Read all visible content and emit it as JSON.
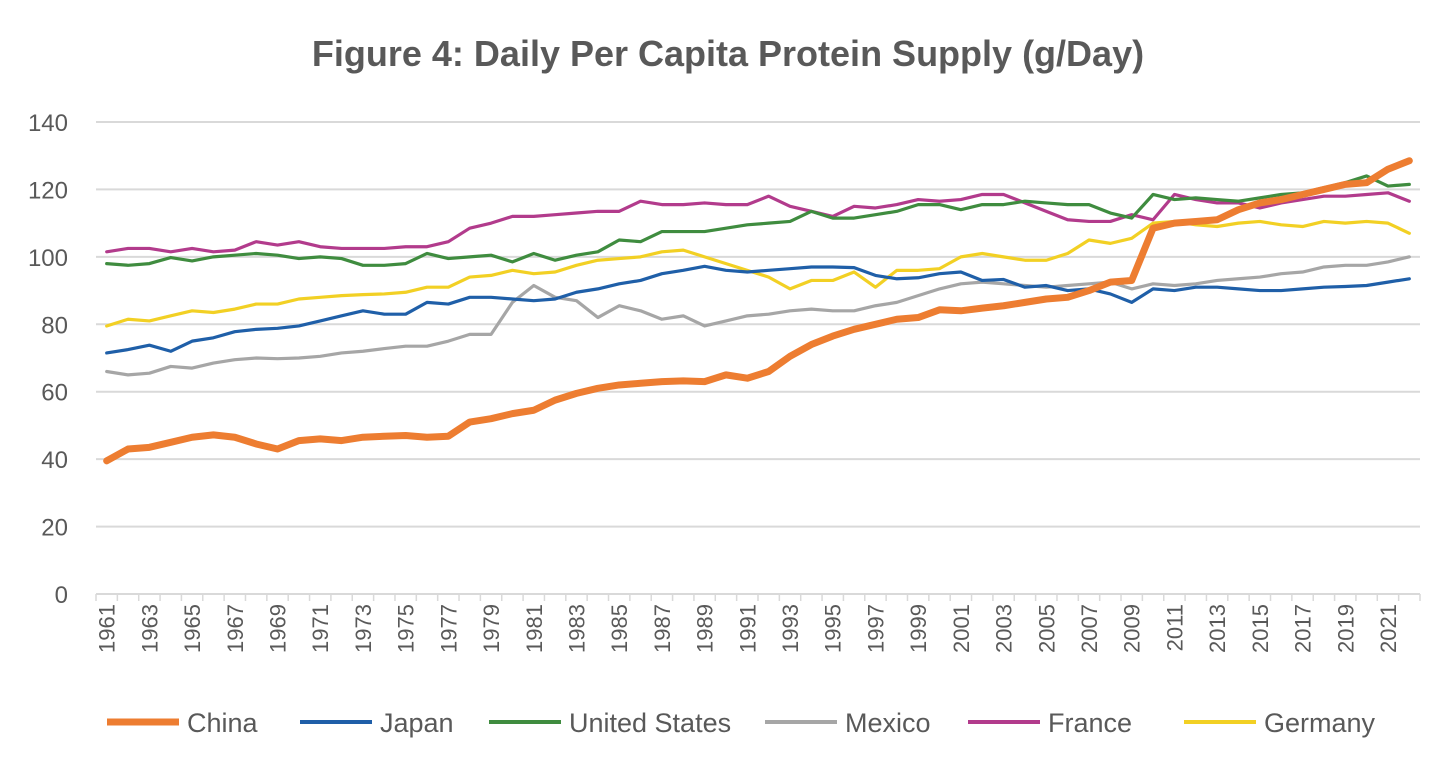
{
  "chart_data": {
    "type": "line",
    "title": "Figure 4: Daily Per Capita Protein Supply (g/Day)",
    "xlabel": "",
    "ylabel": "",
    "ylim": [
      0,
      140
    ],
    "yticks": [
      0,
      20,
      40,
      60,
      80,
      100,
      120,
      140
    ],
    "grid": true,
    "legend_position": "bottom",
    "x": [
      1961,
      1962,
      1963,
      1964,
      1965,
      1966,
      1967,
      1968,
      1969,
      1970,
      1971,
      1972,
      1973,
      1974,
      1975,
      1976,
      1977,
      1978,
      1979,
      1980,
      1981,
      1982,
      1983,
      1984,
      1985,
      1986,
      1987,
      1988,
      1989,
      1990,
      1991,
      1992,
      1993,
      1994,
      1995,
      1996,
      1997,
      1998,
      1999,
      2000,
      2001,
      2002,
      2003,
      2004,
      2005,
      2006,
      2007,
      2008,
      2009,
      2010,
      2011,
      2012,
      2013,
      2014,
      2015,
      2016,
      2017,
      2018,
      2019,
      2020,
      2021,
      2022
    ],
    "xtick_labels": [
      "1961",
      "1963",
      "1965",
      "1967",
      "1969",
      "1971",
      "1973",
      "1975",
      "1977",
      "1979",
      "1981",
      "1983",
      "1985",
      "1987",
      "1989",
      "1991",
      "1993",
      "1995",
      "1997",
      "1999",
      "2001",
      "2003",
      "2005",
      "2007",
      "2009",
      "2011",
      "2013",
      "2015",
      "2017",
      "2019",
      "2021"
    ],
    "series": [
      {
        "name": "China",
        "color": "#ED7D31",
        "values": [
          39.5,
          43,
          43.5,
          45,
          46.5,
          47.2,
          46.5,
          44.5,
          43,
          45.5,
          46,
          45.5,
          46.5,
          46.8,
          47,
          46.5,
          46.8,
          51,
          52,
          53.5,
          54.5,
          57.5,
          59.5,
          61,
          62,
          62.5,
          63,
          63.2,
          63,
          65,
          64,
          66,
          70.5,
          74,
          76.5,
          78.5,
          80,
          81.5,
          82,
          84.3,
          84,
          84.8,
          85.5,
          86.5,
          87.5,
          88,
          90,
          92.5,
          93,
          108.5,
          110,
          110.5,
          111,
          114,
          116,
          117,
          118.5,
          120,
          121.5,
          122,
          126,
          128.5
        ]
      },
      {
        "name": "Japan",
        "color": "#1F5FA8",
        "values": [
          71.5,
          72.5,
          73.8,
          72,
          75,
          76,
          77.8,
          78.5,
          78.8,
          79.5,
          81,
          82.5,
          84,
          83,
          83,
          86.5,
          86,
          88,
          88,
          87.5,
          87,
          87.5,
          89.5,
          90.5,
          92,
          93,
          95,
          96,
          97.2,
          96,
          95.5,
          96,
          96.5,
          97,
          97,
          96.8,
          94.5,
          93.5,
          93.8,
          95,
          95.5,
          93,
          93.3,
          91,
          91.5,
          90,
          90.5,
          89,
          86.5,
          90.5,
          90,
          91,
          91,
          90.5,
          90,
          90,
          90.5,
          91,
          91.2,
          91.5,
          92.5,
          93.5
        ]
      },
      {
        "name": "United States",
        "color": "#3F8C3F",
        "values": [
          98,
          97.5,
          98,
          99.8,
          98.8,
          100,
          100.5,
          101,
          100.5,
          99.5,
          100,
          99.5,
          97.5,
          97.5,
          98,
          101,
          99.5,
          100,
          100.5,
          98.5,
          101,
          99,
          100.5,
          101.5,
          105,
          104.5,
          107.5,
          107.5,
          107.5,
          108.5,
          109.5,
          110,
          110.5,
          113.5,
          111.5,
          111.5,
          112.5,
          113.5,
          115.5,
          115.5,
          114,
          115.5,
          115.5,
          116.5,
          116,
          115.5,
          115.5,
          113,
          111.5,
          118.5,
          117,
          117.5,
          117,
          116.5,
          117.5,
          118.5,
          119,
          120.5,
          122,
          124,
          121,
          121.5
        ]
      },
      {
        "name": "Mexico",
        "color": "#A6A6A6",
        "values": [
          66,
          65,
          65.5,
          67.5,
          67,
          68.5,
          69.5,
          70,
          69.8,
          70,
          70.5,
          71.5,
          72,
          72.8,
          73.5,
          73.5,
          75,
          77,
          77,
          86.5,
          91.5,
          88,
          87,
          82,
          85.5,
          84,
          81.5,
          82.5,
          79.5,
          81,
          82.5,
          83,
          84,
          84.5,
          84,
          84,
          85.5,
          86.5,
          88.5,
          90.5,
          92,
          92.5,
          92,
          91.5,
          91,
          91.5,
          92,
          92.5,
          90.5,
          92,
          91.5,
          92,
          93,
          93.5,
          94,
          95,
          95.5,
          97,
          97.5,
          97.5,
          98.5,
          100
        ]
      },
      {
        "name": "France",
        "color": "#B23B8C",
        "values": [
          101.5,
          102.5,
          102.5,
          101.5,
          102.5,
          101.5,
          102,
          104.5,
          103.5,
          104.5,
          103,
          102.5,
          102.5,
          102.5,
          103,
          103,
          104.5,
          108.5,
          110,
          112,
          112,
          112.5,
          113,
          113.5,
          113.5,
          116.5,
          115.5,
          115.5,
          116,
          115.5,
          115.5,
          118,
          115,
          113.5,
          112,
          115,
          114.5,
          115.5,
          117,
          116.5,
          117,
          118.5,
          118.5,
          116,
          113.5,
          111,
          110.5,
          110.5,
          112.5,
          111,
          118.5,
          117,
          116,
          116,
          114.5,
          116,
          117,
          118,
          118,
          118.5,
          119,
          116.5
        ]
      },
      {
        "name": "Germany",
        "color": "#F2D024",
        "values": [
          79.5,
          81.5,
          81,
          82.5,
          84,
          83.5,
          84.5,
          86,
          86,
          87.5,
          88,
          88.5,
          88.8,
          89,
          89.5,
          91,
          91,
          94,
          94.5,
          96,
          95,
          95.5,
          97.5,
          99,
          99.5,
          100,
          101.5,
          102,
          100,
          98,
          96,
          94,
          90.5,
          93,
          93,
          95.5,
          91,
          96,
          96,
          96.5,
          100,
          101,
          100,
          99,
          99,
          101,
          105,
          104,
          105.5,
          110,
          110.5,
          109.5,
          109,
          110,
          110.5,
          109.5,
          109,
          110.5,
          110,
          110.5,
          110,
          107
        ]
      }
    ]
  }
}
